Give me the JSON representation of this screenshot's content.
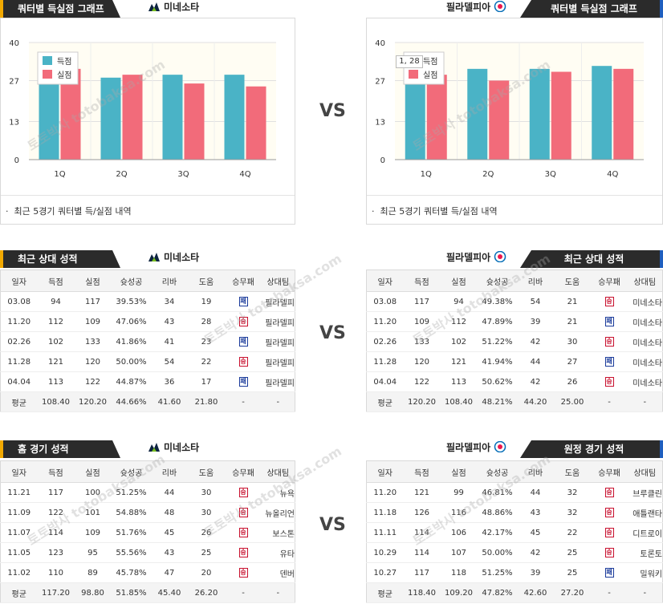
{
  "vs_label": "VS",
  "watermark": "토토박사 totobaksa.com",
  "colors": {
    "score": "#4ab3c6",
    "allowed": "#f26b7a",
    "win": "#c8102e",
    "loss": "#1a3a9a"
  },
  "left_team": "미네소타",
  "right_team": "필라델피아",
  "sections": {
    "quarter_title": "쿼터별 득실점 그래프",
    "recent_title": "최근 상대 성적",
    "home_title": "홈 경기 성적",
    "away_title": "원정 경기 성적",
    "quarter_note": "최근 5경기 쿼터별 득/실점 내역"
  },
  "tooltip": "1, 28",
  "columns": [
    "일자",
    "득점",
    "실점",
    "슛성공",
    "리바",
    "도움",
    "승무패",
    "상대팀"
  ],
  "chart_data": [
    {
      "type": "bar",
      "categories": [
        "1Q",
        "2Q",
        "3Q",
        "4Q"
      ],
      "ylim": [
        0,
        40
      ],
      "yticks": [
        "0",
        "13",
        "27",
        "40"
      ],
      "series": [
        {
          "name": "득점",
          "values": [
            27,
            28,
            29,
            29
          ]
        },
        {
          "name": "실점",
          "values": [
            31,
            29,
            26,
            25
          ]
        }
      ],
      "legend": "top-left",
      "grid": true
    },
    {
      "type": "bar",
      "categories": [
        "1Q",
        "2Q",
        "3Q",
        "4Q"
      ],
      "ylim": [
        0,
        40
      ],
      "yticks": [
        "0",
        "13",
        "27",
        "40"
      ],
      "series": [
        {
          "name": "득점",
          "values": [
            28,
            31,
            31,
            32
          ]
        },
        {
          "name": "실점",
          "values": [
            29,
            27,
            30,
            31
          ]
        }
      ],
      "legend": "top-left",
      "grid": true
    }
  ],
  "tables": {
    "recent_left": {
      "rows": [
        [
          "03.08",
          "94",
          "117",
          "39.53%",
          "34",
          "19",
          "패",
          "필라델피"
        ],
        [
          "11.20",
          "112",
          "109",
          "47.06%",
          "43",
          "28",
          "승",
          "필라델피"
        ],
        [
          "02.26",
          "102",
          "133",
          "41.86%",
          "41",
          "23",
          "패",
          "필라델피"
        ],
        [
          "11.28",
          "121",
          "120",
          "50.00%",
          "54",
          "22",
          "승",
          "필라델피"
        ],
        [
          "04.04",
          "113",
          "122",
          "44.87%",
          "36",
          "17",
          "패",
          "필라델피"
        ]
      ],
      "avg": [
        "평균",
        "108.40",
        "120.20",
        "44.66%",
        "41.60",
        "21.80",
        "-",
        "-"
      ]
    },
    "recent_right": {
      "rows": [
        [
          "03.08",
          "117",
          "94",
          "49.38%",
          "54",
          "21",
          "승",
          "미네소타"
        ],
        [
          "11.20",
          "109",
          "112",
          "47.89%",
          "39",
          "21",
          "패",
          "미네소타"
        ],
        [
          "02.26",
          "133",
          "102",
          "51.22%",
          "42",
          "30",
          "승",
          "미네소타"
        ],
        [
          "11.28",
          "120",
          "121",
          "41.94%",
          "44",
          "27",
          "패",
          "미네소타"
        ],
        [
          "04.04",
          "122",
          "113",
          "50.62%",
          "42",
          "26",
          "승",
          "미네소타"
        ]
      ],
      "avg": [
        "평균",
        "120.20",
        "108.40",
        "48.21%",
        "44.20",
        "25.00",
        "-",
        "-"
      ]
    },
    "home_left": {
      "rows": [
        [
          "11.21",
          "117",
          "100",
          "51.25%",
          "44",
          "30",
          "승",
          "뉴욕"
        ],
        [
          "11.09",
          "122",
          "101",
          "54.88%",
          "48",
          "30",
          "승",
          "뉴올리언"
        ],
        [
          "11.07",
          "114",
          "109",
          "51.76%",
          "45",
          "26",
          "승",
          "보스톤"
        ],
        [
          "11.05",
          "123",
          "95",
          "55.56%",
          "43",
          "25",
          "승",
          "유타"
        ],
        [
          "11.02",
          "110",
          "89",
          "45.78%",
          "47",
          "20",
          "승",
          "덴버"
        ]
      ],
      "avg": [
        "평균",
        "117.20",
        "98.80",
        "51.85%",
        "45.40",
        "26.20",
        "-",
        "-"
      ]
    },
    "away_right": {
      "rows": [
        [
          "11.20",
          "121",
          "99",
          "46.81%",
          "44",
          "32",
          "승",
          "브루클린"
        ],
        [
          "11.18",
          "126",
          "116",
          "48.86%",
          "43",
          "32",
          "승",
          "애틀랜타"
        ],
        [
          "11.11",
          "114",
          "106",
          "42.17%",
          "45",
          "22",
          "승",
          "디트로이"
        ],
        [
          "10.29",
          "114",
          "107",
          "50.00%",
          "42",
          "25",
          "승",
          "토론토"
        ],
        [
          "10.27",
          "117",
          "118",
          "51.25%",
          "39",
          "25",
          "패",
          "밀워키"
        ]
      ],
      "avg": [
        "평균",
        "118.40",
        "109.20",
        "47.82%",
        "42.60",
        "27.20",
        "-",
        "-"
      ]
    }
  }
}
